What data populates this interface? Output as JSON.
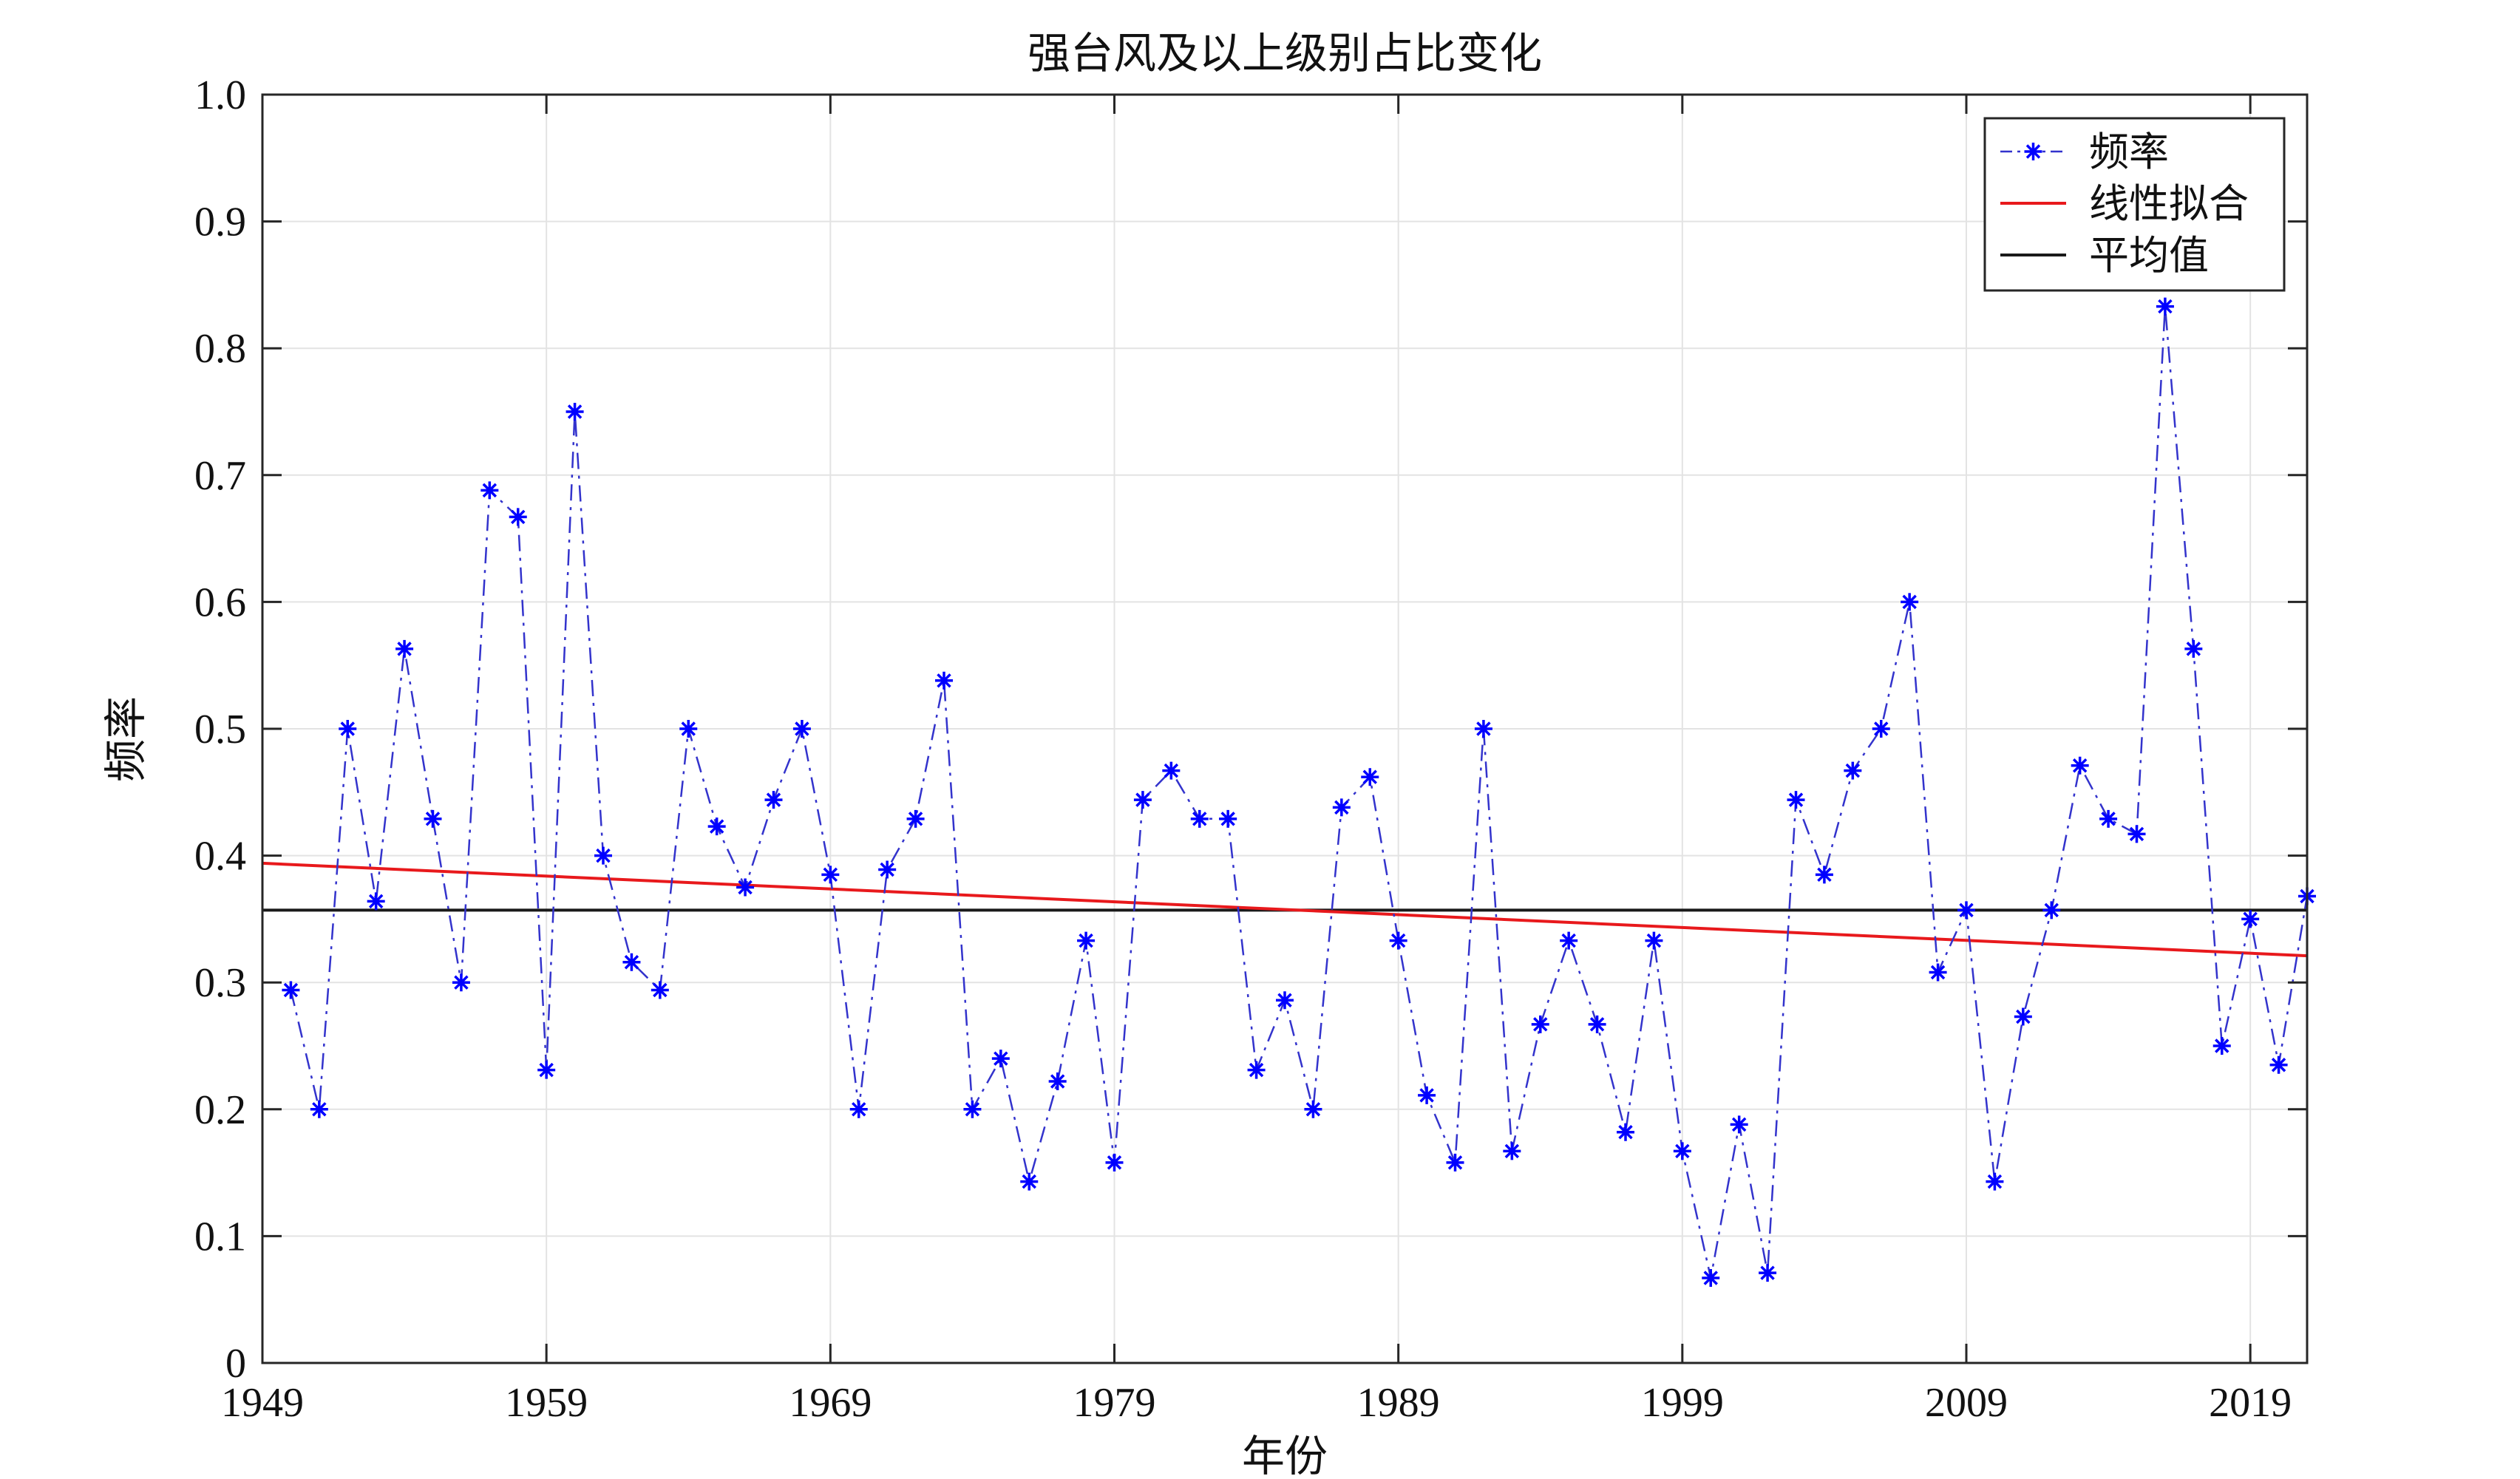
{
  "chart_data": {
    "type": "line",
    "title": "强台风及以上级别占比变化",
    "xlabel": "年份",
    "ylabel": "频率",
    "xlim": [
      1949,
      2021
    ],
    "ylim": [
      0,
      1
    ],
    "xticks": [
      1949,
      1959,
      1969,
      1979,
      1989,
      1999,
      2009,
      2019
    ],
    "yticks": [
      "0",
      "0.1",
      "0.2",
      "0.3",
      "0.4",
      "0.5",
      "0.6",
      "0.7",
      "0.8",
      "0.9",
      "1.0"
    ],
    "grid": true,
    "legend_position": "top-right",
    "series": [
      {
        "name": "频率",
        "style": "dash-dot with star markers",
        "color": "#3333cc",
        "marker_color": "#0000ff",
        "x": [
          1950,
          1951,
          1952,
          1953,
          1954,
          1955,
          1956,
          1957,
          1958,
          1959,
          1960,
          1961,
          1962,
          1963,
          1964,
          1965,
          1966,
          1967,
          1968,
          1969,
          1970,
          1971,
          1972,
          1973,
          1974,
          1975,
          1976,
          1977,
          1978,
          1979,
          1980,
          1981,
          1982,
          1983,
          1984,
          1985,
          1986,
          1987,
          1988,
          1989,
          1990,
          1991,
          1992,
          1993,
          1994,
          1995,
          1996,
          1997,
          1998,
          1999,
          2000,
          2001,
          2002,
          2003,
          2004,
          2005,
          2006,
          2007,
          2008,
          2009,
          2010,
          2011,
          2012,
          2013,
          2014,
          2015,
          2016,
          2017,
          2018,
          2019,
          2020,
          2021
        ],
        "y": [
          0.294,
          0.2,
          0.5,
          0.364,
          0.563,
          0.429,
          0.3,
          0.688,
          0.667,
          0.231,
          0.75,
          0.4,
          0.316,
          0.294,
          0.5,
          0.423,
          0.375,
          0.444,
          0.5,
          0.385,
          0.2,
          0.389,
          0.429,
          0.538,
          0.2,
          0.24,
          0.143,
          0.222,
          0.333,
          0.158,
          0.444,
          0.467,
          0.429,
          0.429,
          0.231,
          0.286,
          0.2,
          0.438,
          0.462,
          0.333,
          0.211,
          0.158,
          0.5,
          0.167,
          0.267,
          0.333,
          0.267,
          0.182,
          0.333,
          0.167,
          0.067,
          0.188,
          0.071,
          0.444,
          0.385,
          0.467,
          0.5,
          0.6,
          0.308,
          0.357,
          0.143,
          0.273,
          0.357,
          0.471,
          0.429,
          0.417,
          0.833,
          0.563,
          0.25,
          0.35,
          0.235,
          0.368
        ]
      },
      {
        "name": "线性拟合",
        "style": "solid",
        "color": "#e8191c",
        "x": [
          1949,
          2021
        ],
        "y": [
          0.394,
          0.321
        ]
      },
      {
        "name": "平均值",
        "style": "solid",
        "color": "#1a1a1a",
        "x": [
          1949,
          2021
        ],
        "y": [
          0.357,
          0.357
        ]
      }
    ]
  }
}
